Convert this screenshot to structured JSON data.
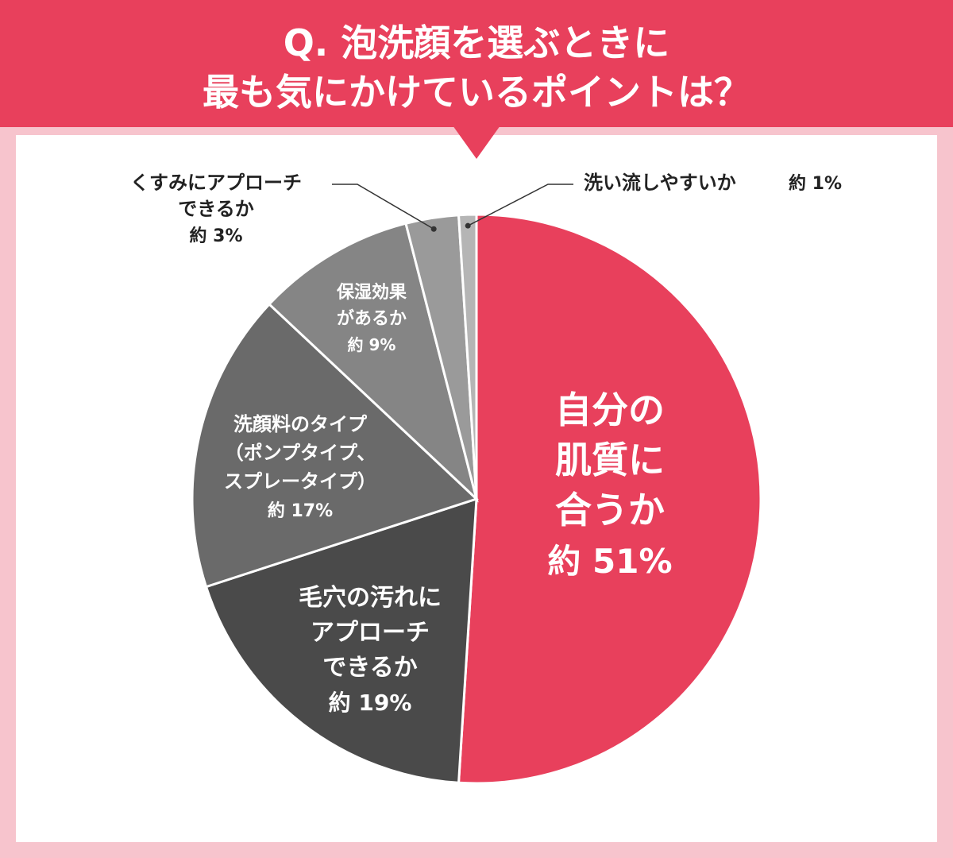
{
  "header": {
    "title_line1": "Q. 泡洗顔を選ぶときに",
    "title_line2": "最も気にかけているポイントは？"
  },
  "colors": {
    "accent": "#e8405c",
    "background": "#f7c4cd",
    "panel": "#ffffff",
    "slice_colors": [
      "#e8405c",
      "#4a4a4a",
      "#6a6a6a",
      "#858585",
      "#9a9a9a",
      "#b5b5b5"
    ]
  },
  "chart_data": {
    "type": "pie",
    "title": "Q. 泡洗顔を選ぶときに最も気にかけているポイントは？",
    "slices": [
      {
        "label": "自分の肌質に合うか",
        "value": 51,
        "value_label": "約 51%"
      },
      {
        "label": "毛穴の汚れにアプローチできるか",
        "value": 19,
        "value_label": "約 19%"
      },
      {
        "label": "洗顔料のタイプ（ポンプタイプ、スプレータイプ）",
        "value": 17,
        "value_label": "約 17%"
      },
      {
        "label": "保湿効果があるか",
        "value": 9,
        "value_label": "約 9%"
      },
      {
        "label": "くすみにアプローチできるか",
        "value": 3,
        "value_label": "約 3%"
      },
      {
        "label": "洗い流しやすいか",
        "value": 1,
        "value_label": "約 1%"
      }
    ],
    "labels": {
      "s0": {
        "lines": [
          "自分の",
          "肌質に",
          "合うか"
        ],
        "value": "約 51%"
      },
      "s1": {
        "lines": [
          "毛穴の汚れに",
          "アプローチ",
          "できるか"
        ],
        "value": "約 19%"
      },
      "s2": {
        "lines": [
          "洗顔料のタイプ",
          "（ポンプタイプ、",
          "スプレータイプ）"
        ],
        "value": "約 17%"
      },
      "s3": {
        "lines": [
          "保湿効果",
          "があるか"
        ],
        "value": "約 9%"
      },
      "s4": {
        "lines": [
          "くすみにアプローチ",
          "できるか"
        ],
        "value": "約 3%"
      },
      "s5": {
        "lines": [
          "洗い流しやすいか"
        ],
        "value": "約 1%"
      }
    }
  }
}
